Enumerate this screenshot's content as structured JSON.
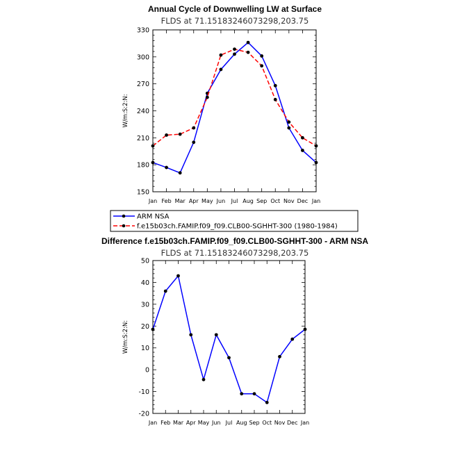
{
  "colors": {
    "obs": "#0000ff",
    "model": "#ff0000",
    "diff": "#0000ff",
    "marker": "#000000",
    "axis": "#000000"
  },
  "chart_data": [
    {
      "type": "line",
      "title": "Annual Cycle of Downwelling LW at Surface",
      "subtitle": "FLDS at 71.15183246073298,203.75",
      "ylabel": "W/m:S:2:N:",
      "xlabel": "",
      "categories": [
        "Jan",
        "Feb",
        "Mar",
        "Apr",
        "May",
        "Jun",
        "Jul",
        "Aug",
        "Sep",
        "Oct",
        "Nov",
        "Dec",
        "Jan"
      ],
      "ylim": [
        150,
        330
      ],
      "yticks": [
        150,
        180,
        210,
        240,
        270,
        300,
        330
      ],
      "series": [
        {
          "name": "ARM NSA",
          "style": "solid",
          "values": [
            182.5,
            177,
            171,
            205,
            259.5,
            286,
            303,
            316,
            301,
            268,
            221,
            196,
            182.5
          ]
        },
        {
          "name": "f.e15b03ch.FAMIP.f09_f09.CLB00-SGHHT-300 (1980-1984)",
          "style": "dashed",
          "values": [
            201,
            213,
            214,
            221,
            255,
            302,
            308.5,
            305,
            290,
            252.5,
            227.5,
            210,
            201
          ]
        }
      ],
      "legend": {
        "placement": "below",
        "entries": [
          "ARM NSA",
          "f.e15b03ch.FAMIP.f09_f09.CLB00-SGHHT-300 (1980-1984)"
        ]
      }
    },
    {
      "type": "line",
      "title": "Difference f.e15b03ch.FAMIP.f09_f09.CLB00-SGHHT-300 - ARM NSA",
      "subtitle": "FLDS at 71.15183246073298,203.75",
      "ylabel": "W/m:S:2:N:",
      "xlabel": "",
      "categories": [
        "Jan",
        "Feb",
        "Mar",
        "Apr",
        "May",
        "Jun",
        "Jul",
        "Aug",
        "Sep",
        "Oct",
        "Nov",
        "Dec",
        "Jan"
      ],
      "ylim": [
        -20,
        50
      ],
      "yticks": [
        -20,
        -10,
        0,
        10,
        20,
        30,
        40,
        50
      ],
      "series": [
        {
          "name": "Difference",
          "style": "solid",
          "values": [
            18.5,
            36,
            43,
            16,
            -4.5,
            16,
            5.5,
            -11,
            -11,
            -15,
            6,
            14,
            18.5
          ]
        }
      ]
    }
  ]
}
